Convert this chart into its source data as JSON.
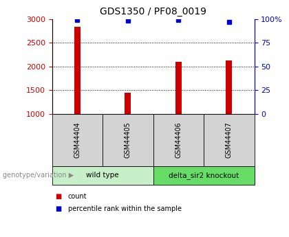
{
  "title": "GDS1350 / PF08_0019",
  "samples": [
    "GSM44404",
    "GSM44405",
    "GSM44406",
    "GSM44407"
  ],
  "counts": [
    2830,
    1450,
    2100,
    2130
  ],
  "percentiles": [
    99,
    98,
    99,
    97
  ],
  "ylim_left": [
    1000,
    3000
  ],
  "ylim_right": [
    0,
    100
  ],
  "yticks_left": [
    1000,
    1500,
    2000,
    2500,
    3000
  ],
  "yticks_right": [
    0,
    25,
    50,
    75,
    100
  ],
  "ytick_labels_right": [
    "0",
    "25",
    "50",
    "75",
    "100%"
  ],
  "grid_values": [
    1500,
    2000,
    2500
  ],
  "bar_color": "#cc0000",
  "percentile_color": "#0000cc",
  "bar_width": 0.12,
  "groups": [
    {
      "label": "wild type",
      "samples": [
        0,
        1
      ],
      "color": "#c8f0c8"
    },
    {
      "label": "delta_sir2 knockout",
      "samples": [
        2,
        3
      ],
      "color": "#66dd66"
    }
  ],
  "group_label_prefix": "genotype/variation",
  "legend_count_label": "count",
  "legend_percentile_label": "percentile rank within the sample",
  "left_axis_color": "#cc0000",
  "right_axis_color": "#0000cc"
}
